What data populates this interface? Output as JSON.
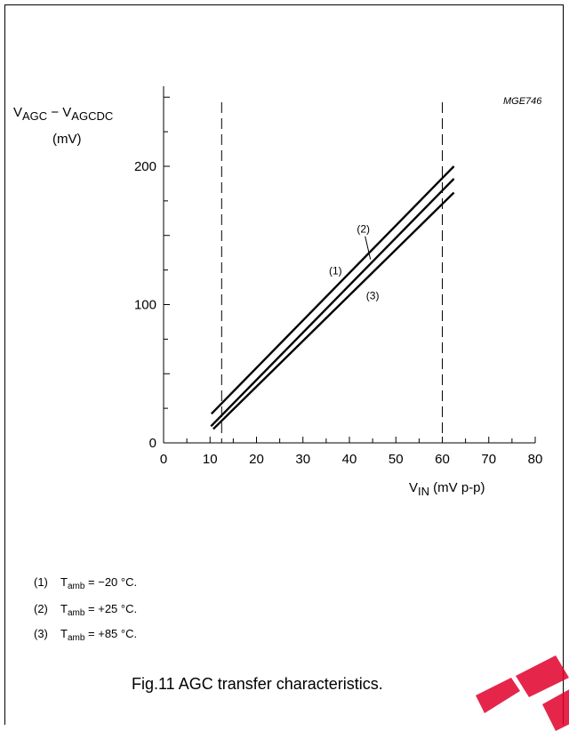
{
  "figure_code": "MGE746",
  "y_label": {
    "main": "V",
    "sub1": "AGC",
    "minus": " − V",
    "sub2": "AGCDC",
    "unit": "(mV)"
  },
  "x_label": {
    "main": "V",
    "sub": "IN",
    "unit": " (mV p-p)"
  },
  "notes": [
    {
      "num": "(1)",
      "t": "T",
      "sub": "amb",
      "val": " = −20 °C."
    },
    {
      "num": "(2)",
      "t": "T",
      "sub": "amb",
      "val": " = +25 °C."
    },
    {
      "num": "(3)",
      "t": "T",
      "sub": "amb",
      "val": " = +85 °C."
    }
  ],
  "caption": "Fig.11  AGC transfer characteristics.",
  "chart_data": {
    "type": "line",
    "title": "",
    "xlabel": "V_IN (mV p-p)",
    "ylabel": "V_AGC − V_AGCDC (mV)",
    "xlim": [
      0,
      80
    ],
    "ylim": [
      0,
      250
    ],
    "x_ticks": [
      0,
      10,
      20,
      30,
      40,
      50,
      60,
      70,
      80
    ],
    "x_tick_labels": [
      "0",
      "10",
      "20",
      "30",
      "40",
      "50",
      "60",
      "70",
      "80"
    ],
    "y_ticks": [
      0,
      100,
      200
    ],
    "y_tick_labels": [
      "0",
      "100",
      "200"
    ],
    "grid": false,
    "reference_lines": [
      {
        "axis": "x",
        "value": 12.5,
        "style": "dashed"
      },
      {
        "axis": "x",
        "value": 60,
        "style": "dashed"
      }
    ],
    "series": [
      {
        "name": "(1)",
        "label_at": [
          37,
          122
        ],
        "x": [
          10.3,
          62.5
        ],
        "y": [
          21,
          200
        ]
      },
      {
        "name": "(2)",
        "label_at": [
          43,
          152
        ],
        "x": [
          10.2,
          62.5
        ],
        "y": [
          12,
          191
        ]
      },
      {
        "name": "(3)",
        "label_at": [
          45,
          104
        ],
        "x": [
          10.7,
          62.5
        ],
        "y": [
          10,
          181
        ]
      }
    ]
  }
}
